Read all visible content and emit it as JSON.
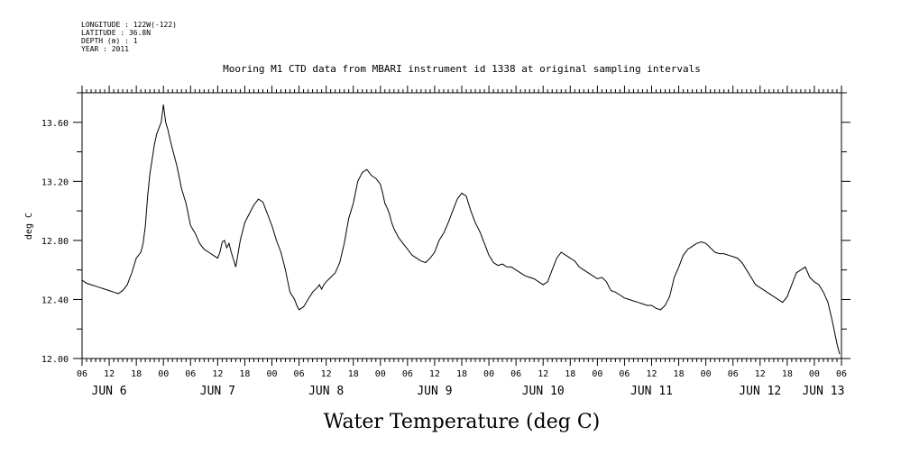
{
  "header": {
    "lines": [
      "LONGITUDE : 122W(-122)",
      "LATITUDE : 36.8N",
      "DEPTH (m) : 1",
      "YEAR : 2011"
    ]
  },
  "chart_data": {
    "type": "line",
    "title": "Mooring M1 CTD data from MBARI instrument id 1338 at original sampling intervals",
    "xlabel": "Water Temperature (deg C)",
    "ylabel": "deg C",
    "x_unit": "hours since JUN 6 00:00 (2011)",
    "xlim": [
      6,
      174
    ],
    "ylim": [
      12.0,
      13.8
    ],
    "yticks": [
      12.0,
      12.4,
      12.8,
      13.2,
      13.6
    ],
    "ytick_labels": [
      "12.00",
      "12.40",
      "12.80",
      "13.20",
      "13.60"
    ],
    "xtick_hours": [
      6,
      12,
      18,
      24,
      30,
      36,
      42,
      48,
      54,
      60,
      66,
      72,
      78,
      84,
      90,
      96,
      102,
      108,
      114,
      120,
      126,
      132,
      138,
      144,
      150,
      156,
      162,
      168,
      174
    ],
    "xtick_labels": [
      "06",
      "12",
      "18",
      "00",
      "06",
      "12",
      "18",
      "00",
      "06",
      "12",
      "18",
      "00",
      "06",
      "12",
      "18",
      "00",
      "06",
      "12",
      "18",
      "00",
      "06",
      "12",
      "18",
      "00",
      "06",
      "12",
      "18",
      "00",
      "06"
    ],
    "day_labels": [
      {
        "text": "JUN  6",
        "hour": 12
      },
      {
        "text": "JUN  7",
        "hour": 36
      },
      {
        "text": "JUN  8",
        "hour": 60
      },
      {
        "text": "JUN  9",
        "hour": 84
      },
      {
        "text": "JUN 10",
        "hour": 108
      },
      {
        "text": "JUN 11",
        "hour": 132
      },
      {
        "text": "JUN 12",
        "hour": 156
      },
      {
        "text": "JUN 13",
        "hour": 170
      }
    ],
    "series": [
      {
        "x": [
          6,
          7,
          8,
          9,
          10,
          11,
          12,
          13,
          14,
          15,
          16,
          17,
          18,
          19,
          19.5,
          20,
          20.5,
          21,
          21.5,
          22,
          22.5,
          23,
          23.5,
          24,
          24.5,
          25,
          25.5,
          26,
          27,
          28,
          29,
          30,
          31,
          32,
          33,
          34,
          35,
          36,
          36.5,
          37,
          37.5,
          38,
          38.5,
          39,
          40,
          41,
          42,
          43,
          44,
          45,
          46,
          47,
          48,
          49,
          50,
          51,
          52,
          53,
          53.5,
          54,
          55,
          56,
          57,
          58,
          58.5,
          59,
          59.5,
          60,
          61,
          62,
          63,
          64,
          65,
          66,
          67,
          68,
          69,
          70,
          71,
          72,
          72.5,
          73,
          73.5,
          74,
          74.5,
          75,
          76,
          77,
          78,
          79,
          80,
          81,
          82,
          83,
          84,
          85,
          86,
          87,
          88,
          89,
          90,
          91,
          92,
          93,
          94,
          95,
          96,
          97,
          98,
          99,
          100,
          101,
          102,
          103,
          104,
          105,
          106,
          107,
          108,
          109,
          110,
          111,
          112,
          113,
          114,
          115,
          116,
          117,
          118,
          119,
          120,
          121,
          122,
          123,
          124,
          125,
          126,
          127,
          128,
          129,
          130,
          131,
          132,
          133,
          134,
          135,
          136,
          137,
          138,
          139,
          140,
          141,
          142,
          143,
          144,
          145,
          146,
          147,
          148,
          149,
          150,
          151,
          152,
          153,
          154,
          155,
          156,
          157,
          158,
          159,
          160,
          161,
          162,
          163,
          164,
          165,
          166,
          167,
          168,
          169,
          170,
          171,
          172,
          173,
          173.6
        ],
        "y": [
          12.53,
          12.51,
          12.5,
          12.49,
          12.48,
          12.47,
          12.46,
          12.45,
          12.44,
          12.46,
          12.5,
          12.58,
          12.68,
          12.72,
          12.78,
          12.9,
          13.1,
          13.25,
          13.35,
          13.45,
          13.52,
          13.56,
          13.6,
          13.72,
          13.6,
          13.55,
          13.48,
          13.42,
          13.3,
          13.15,
          13.05,
          12.9,
          12.85,
          12.78,
          12.74,
          12.72,
          12.7,
          12.68,
          12.72,
          12.79,
          12.8,
          12.75,
          12.78,
          12.72,
          12.62,
          12.8,
          12.92,
          12.98,
          13.04,
          13.08,
          13.06,
          12.98,
          12.9,
          12.8,
          12.72,
          12.6,
          12.45,
          12.4,
          12.36,
          12.33,
          12.35,
          12.4,
          12.45,
          12.48,
          12.5,
          12.47,
          12.5,
          12.52,
          12.55,
          12.58,
          12.65,
          12.78,
          12.95,
          13.05,
          13.2,
          13.26,
          13.28,
          13.24,
          13.22,
          13.18,
          13.12,
          13.05,
          13.02,
          12.98,
          12.92,
          12.88,
          12.82,
          12.78,
          12.74,
          12.7,
          12.68,
          12.66,
          12.65,
          12.68,
          12.72,
          12.8,
          12.85,
          12.92,
          13.0,
          13.08,
          13.12,
          13.1,
          13.0,
          12.92,
          12.86,
          12.78,
          12.7,
          12.65,
          12.63,
          12.64,
          12.62,
          12.62,
          12.6,
          12.58,
          12.56,
          12.55,
          12.54,
          12.52,
          12.5,
          12.52,
          12.6,
          12.68,
          12.72,
          12.7,
          12.68,
          12.66,
          12.62,
          12.6,
          12.58,
          12.56,
          12.54,
          12.55,
          12.52,
          12.46,
          12.45,
          12.43,
          12.41,
          12.4,
          12.39,
          12.38,
          12.37,
          12.36,
          12.36,
          12.34,
          12.33,
          12.36,
          12.42,
          12.55,
          12.62,
          12.7,
          12.74,
          12.76,
          12.78,
          12.79,
          12.78,
          12.75,
          12.72,
          12.71,
          12.71,
          12.7,
          12.69,
          12.68,
          12.65,
          12.6,
          12.55,
          12.5,
          12.48,
          12.46,
          12.44,
          12.42,
          12.4,
          12.38,
          12.42,
          12.5,
          12.58,
          12.6,
          12.62,
          12.55,
          12.52,
          12.5,
          12.45,
          12.38,
          12.25,
          12.1,
          12.03
        ]
      }
    ]
  }
}
